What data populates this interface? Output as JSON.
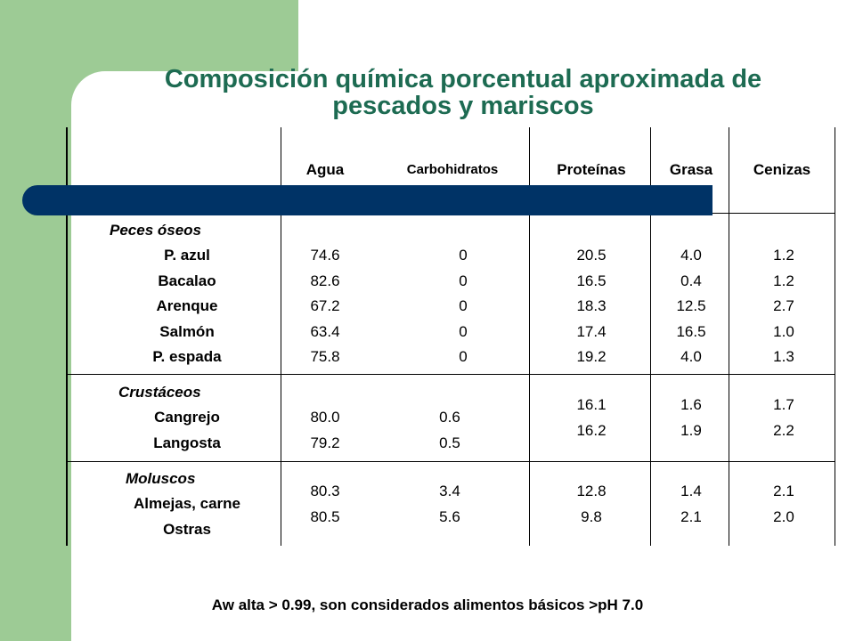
{
  "title": {
    "line1": "Composición química porcentual aproximada de",
    "line2": "pescados y mariscos"
  },
  "colors": {
    "accent_green": "#9dcb95",
    "bar_navy": "#003366",
    "title_green": "#1d6b52"
  },
  "table": {
    "headers": [
      "Agua",
      "Carbohidratos",
      "Proteínas",
      "Grasa",
      "Cenizas"
    ],
    "groups": [
      {
        "category": "Peces óseos",
        "rows": [
          {
            "name": "P. azul",
            "agua": "74.6",
            "carbo": "0",
            "prot": "20.5",
            "grasa": "4.0",
            "cen": "1.2"
          },
          {
            "name": "Bacalao",
            "agua": "82.6",
            "carbo": "0",
            "prot": "16.5",
            "grasa": "0.4",
            "cen": "1.2"
          },
          {
            "name": "Arenque",
            "agua": "67.2",
            "carbo": "0",
            "prot": "18.3",
            "grasa": "12.5",
            "cen": "2.7"
          },
          {
            "name": "Salmón",
            "agua": "63.4",
            "carbo": "0",
            "prot": "17.4",
            "grasa": "16.5",
            "cen": "1.0"
          },
          {
            "name": "P. espada",
            "agua": "75.8",
            "carbo": "0",
            "prot": "19.2",
            "grasa": "4.0",
            "cen": "1.3"
          }
        ]
      },
      {
        "category": "Crustáceos",
        "rows": [
          {
            "name": "Cangrejo",
            "agua": "80.0",
            "carbo": "0.6",
            "prot": "16.1",
            "grasa": "1.6",
            "cen": "1.7"
          },
          {
            "name": "Langosta",
            "agua": "79.2",
            "carbo": "0.5",
            "prot": "16.2",
            "grasa": "1.9",
            "cen": "2.2"
          }
        ]
      },
      {
        "category": "Moluscos",
        "rows": [
          {
            "name": "Almejas, carne",
            "agua": "80.3",
            "carbo": "3.4",
            "prot": "12.8",
            "grasa": "1.4",
            "cen": "2.1"
          },
          {
            "name": "Ostras",
            "agua": "80.5",
            "carbo": "5.6",
            "prot": "9.8",
            "grasa": "2.1",
            "cen": "2.0"
          }
        ]
      }
    ]
  },
  "footer": "Aw alta > 0.99, son considerados alimentos básicos >pH 7.0"
}
